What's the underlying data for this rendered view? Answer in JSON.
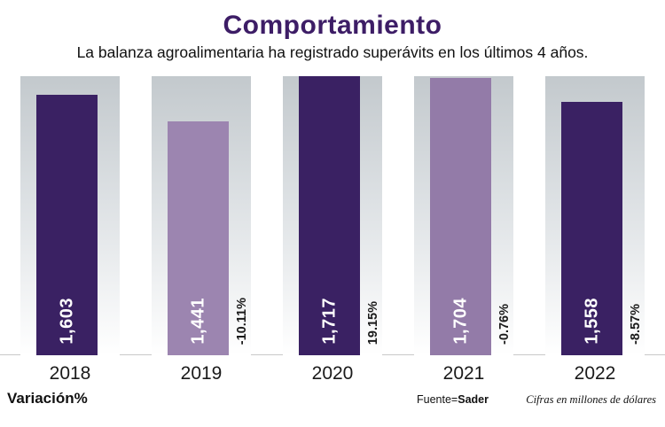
{
  "header": {
    "title": "Comportamiento",
    "subtitle": "La balanza agroalimentaria ha registrado superávits en los últimos 4 años."
  },
  "footer": {
    "variation_label": "Variación%",
    "source_prefix": "Fuente",
    "source_separator": "=",
    "source_name": "Sader",
    "units_note": "Cifras en millones de dólares"
  },
  "chart_data": {
    "type": "bar",
    "title": "Comportamiento",
    "categories": [
      "2018",
      "2019",
      "2020",
      "2021",
      "2022"
    ],
    "values": [
      1603,
      1441,
      1717,
      1704,
      1558
    ],
    "value_labels": [
      "1,603",
      "1,441",
      "1,717",
      "1,704",
      "1,558"
    ],
    "variations": [
      "",
      "-10.11%",
      "19.15%",
      "-0.76%",
      "-8.57%"
    ],
    "bar_colors": [
      "#3a2163",
      "#9c85b0",
      "#3a2163",
      "#937ba8",
      "#3a2163"
    ],
    "ylim": [
      0,
      1717
    ],
    "ylabel": "millones de dólares",
    "grid": false,
    "legend": false
  },
  "colors": {
    "title": "#3d1d66",
    "column_top": "#c3c9cd",
    "column_bottom": "#ffffff",
    "value_text": "#ffffff",
    "variation_text": "#1a1a1a"
  }
}
